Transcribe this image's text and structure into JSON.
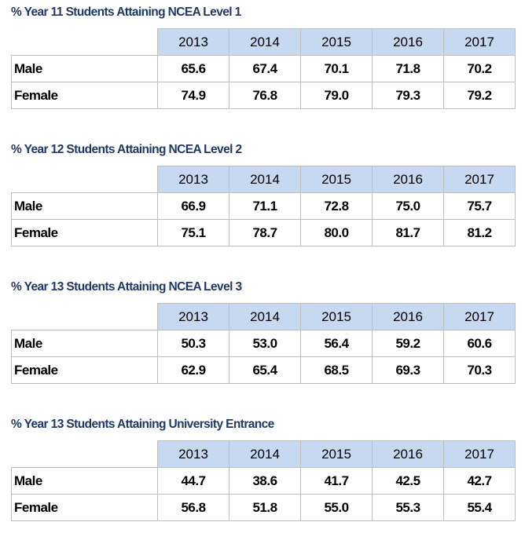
{
  "chart_data": [
    {
      "type": "table",
      "title": "% Year 11 Students Attaining NCEA Level 1",
      "columns": [
        "2013",
        "2014",
        "2015",
        "2016",
        "2017"
      ],
      "rows": [
        {
          "label": "Male",
          "values": [
            "65.6",
            "67.4",
            "70.1",
            "71.8",
            "70.2"
          ]
        },
        {
          "label": "Female",
          "values": [
            "74.9",
            "76.8",
            "79.0",
            "79.3",
            "79.2"
          ]
        }
      ]
    },
    {
      "type": "table",
      "title": "% Year 12 Students Attaining NCEA Level 2",
      "columns": [
        "2013",
        "2014",
        "2015",
        "2016",
        "2017"
      ],
      "rows": [
        {
          "label": "Male",
          "values": [
            "66.9",
            "71.1",
            "72.8",
            "75.0",
            "75.7"
          ]
        },
        {
          "label": "Female",
          "values": [
            "75.1",
            "78.7",
            "80.0",
            "81.7",
            "81.2"
          ]
        }
      ]
    },
    {
      "type": "table",
      "title": "% Year 13 Students Attaining NCEA Level 3",
      "columns": [
        "2013",
        "2014",
        "2015",
        "2016",
        "2017"
      ],
      "rows": [
        {
          "label": "Male",
          "values": [
            "50.3",
            "53.0",
            "56.4",
            "59.2",
            "60.6"
          ]
        },
        {
          "label": "Female",
          "values": [
            "62.9",
            "65.4",
            "68.5",
            "69.3",
            "70.3"
          ]
        }
      ]
    },
    {
      "type": "table",
      "title": "% Year 13 Students Attaining University Entrance",
      "columns": [
        "2013",
        "2014",
        "2015",
        "2016",
        "2017"
      ],
      "rows": [
        {
          "label": "Male",
          "values": [
            "44.7",
            "38.6",
            "41.7",
            "42.5",
            "42.7"
          ]
        },
        {
          "label": "Female",
          "values": [
            "56.8",
            "51.8",
            "55.0",
            "55.3",
            "55.4"
          ]
        }
      ]
    }
  ],
  "colors": {
    "title": "#1f3864",
    "header_fill": "#c6d9f1",
    "border": "#bfbfbf"
  }
}
